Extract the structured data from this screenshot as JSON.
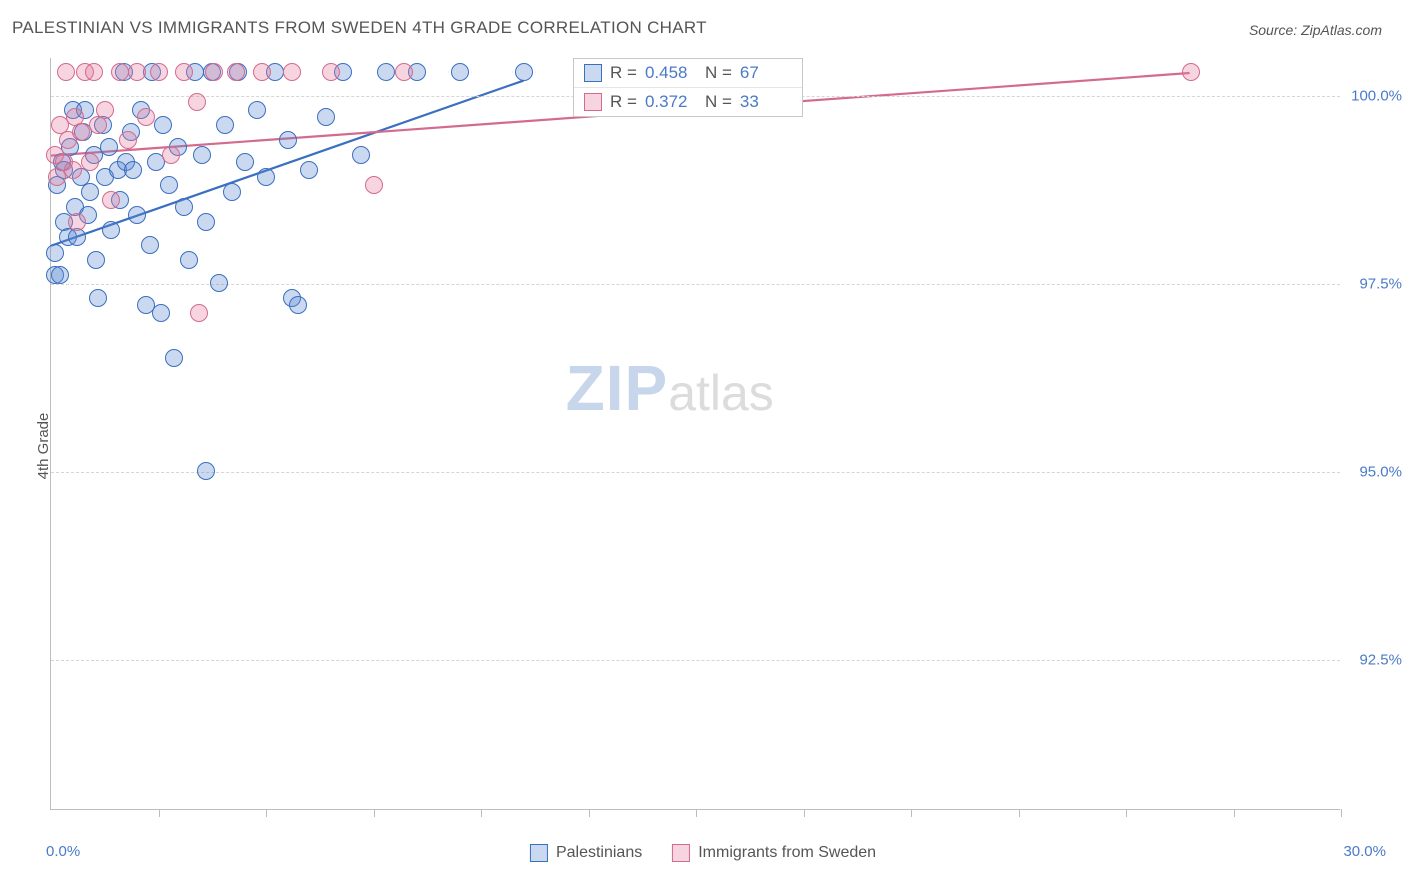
{
  "title": "PALESTINIAN VS IMMIGRANTS FROM SWEDEN 4TH GRADE CORRELATION CHART",
  "source_label": "Source: ZipAtlas.com",
  "ylabel": "4th Grade",
  "watermark": {
    "zip": "ZIP",
    "atlas": "atlas"
  },
  "chart": {
    "type": "scatter",
    "background_color": "#ffffff",
    "grid_color": "#d5d5d5",
    "axis_color": "#bdbdbd",
    "tick_label_color": "#4a7ac8",
    "label_color": "#555555",
    "title_fontsize": 17,
    "label_fontsize": 15,
    "tick_fontsize": 15,
    "xlim": [
      0,
      30
    ],
    "ylim": [
      90.5,
      100.5
    ],
    "xaxis_min_label": "0.0%",
    "xaxis_max_label": "30.0%",
    "xtick_positions": [
      2.5,
      5,
      7.5,
      10,
      12.5,
      15,
      17.5,
      20,
      22.5,
      25,
      27.5,
      30
    ],
    "ytick_positions": [
      92.5,
      95.0,
      97.5,
      100.0
    ],
    "ytick_labels": [
      "92.5%",
      "95.0%",
      "97.5%",
      "100.0%"
    ],
    "marker_radius": 9,
    "marker_stroke_width": 1.5,
    "marker_fill_opacity": 0.32,
    "trend_line_width": 2.2
  },
  "series": [
    {
      "name": "Palestinians",
      "color_stroke": "#3b6fc0",
      "color_fill": "rgba(89,138,209,0.32)",
      "points": [
        [
          0.1,
          97.6
        ],
        [
          0.1,
          97.9
        ],
        [
          0.15,
          98.8
        ],
        [
          0.2,
          97.6
        ],
        [
          0.25,
          99.1
        ],
        [
          0.3,
          99.0
        ],
        [
          0.3,
          98.3
        ],
        [
          0.4,
          98.1
        ],
        [
          0.45,
          99.3
        ],
        [
          0.5,
          99.8
        ],
        [
          0.55,
          98.5
        ],
        [
          0.6,
          98.1
        ],
        [
          0.7,
          98.9
        ],
        [
          0.75,
          99.5
        ],
        [
          0.8,
          99.8
        ],
        [
          0.85,
          98.4
        ],
        [
          0.9,
          98.7
        ],
        [
          1.0,
          99.2
        ],
        [
          1.05,
          97.8
        ],
        [
          1.1,
          97.3
        ],
        [
          1.2,
          99.6
        ],
        [
          1.25,
          98.9
        ],
        [
          1.35,
          99.3
        ],
        [
          1.4,
          98.2
        ],
        [
          1.55,
          99.0
        ],
        [
          1.6,
          98.6
        ],
        [
          1.7,
          100.3
        ],
        [
          1.75,
          99.1
        ],
        [
          1.85,
          99.5
        ],
        [
          1.9,
          99.0
        ],
        [
          2.0,
          98.4
        ],
        [
          2.1,
          99.8
        ],
        [
          2.2,
          97.2
        ],
        [
          2.3,
          98.0
        ],
        [
          2.35,
          100.3
        ],
        [
          2.45,
          99.1
        ],
        [
          2.55,
          97.1
        ],
        [
          2.6,
          99.6
        ],
        [
          2.75,
          98.8
        ],
        [
          2.85,
          96.5
        ],
        [
          2.95,
          99.3
        ],
        [
          3.1,
          98.5
        ],
        [
          3.2,
          97.8
        ],
        [
          3.35,
          100.3
        ],
        [
          3.5,
          99.2
        ],
        [
          3.6,
          98.3
        ],
        [
          3.75,
          100.3
        ],
        [
          3.9,
          97.5
        ],
        [
          3.6,
          95.0
        ],
        [
          4.05,
          99.6
        ],
        [
          4.2,
          98.7
        ],
        [
          4.35,
          100.3
        ],
        [
          4.5,
          99.1
        ],
        [
          4.8,
          99.8
        ],
        [
          5.0,
          98.9
        ],
        [
          5.2,
          100.3
        ],
        [
          5.5,
          99.4
        ],
        [
          5.6,
          97.3
        ],
        [
          5.75,
          97.2
        ],
        [
          6.0,
          99.0
        ],
        [
          6.4,
          99.7
        ],
        [
          6.8,
          100.3
        ],
        [
          7.2,
          99.2
        ],
        [
          7.8,
          100.3
        ],
        [
          8.5,
          100.3
        ],
        [
          9.5,
          100.3
        ],
        [
          11.0,
          100.3
        ]
      ],
      "trend": {
        "x1": 0,
        "y1": 98.0,
        "x2": 11.0,
        "y2": 100.2
      },
      "R": "0.458",
      "N": "67"
    },
    {
      "name": "Immigrants from Sweden",
      "color_stroke": "#d46a8e",
      "color_fill": "rgba(226,125,160,0.32)",
      "points": [
        [
          0.1,
          99.2
        ],
        [
          0.15,
          98.9
        ],
        [
          0.2,
          99.6
        ],
        [
          0.3,
          99.1
        ],
        [
          0.35,
          100.3
        ],
        [
          0.4,
          99.4
        ],
        [
          0.5,
          99.0
        ],
        [
          0.55,
          99.7
        ],
        [
          0.6,
          98.3
        ],
        [
          0.7,
          99.5
        ],
        [
          0.8,
          100.3
        ],
        [
          0.9,
          99.1
        ],
        [
          1.0,
          100.3
        ],
        [
          1.1,
          99.6
        ],
        [
          1.25,
          99.8
        ],
        [
          1.4,
          98.6
        ],
        [
          1.6,
          100.3
        ],
        [
          1.8,
          99.4
        ],
        [
          2.0,
          100.3
        ],
        [
          2.2,
          99.7
        ],
        [
          2.5,
          100.3
        ],
        [
          2.8,
          99.2
        ],
        [
          3.1,
          100.3
        ],
        [
          3.4,
          99.9
        ],
        [
          3.45,
          97.1
        ],
        [
          3.8,
          100.3
        ],
        [
          4.3,
          100.3
        ],
        [
          4.9,
          100.3
        ],
        [
          5.6,
          100.3
        ],
        [
          6.5,
          100.3
        ],
        [
          7.5,
          98.8
        ],
        [
          8.2,
          100.3
        ],
        [
          26.5,
          100.3
        ]
      ],
      "trend": {
        "x1": 0,
        "y1": 99.2,
        "x2": 26.5,
        "y2": 100.3
      },
      "R": "0.372",
      "N": "33"
    }
  ],
  "legend": {
    "items": [
      {
        "label": "Palestinians",
        "series": 0
      },
      {
        "label": "Immigrants from Sweden",
        "series": 1
      }
    ]
  },
  "statbox": {
    "left_pct": 40.5,
    "top_pct": 0
  }
}
